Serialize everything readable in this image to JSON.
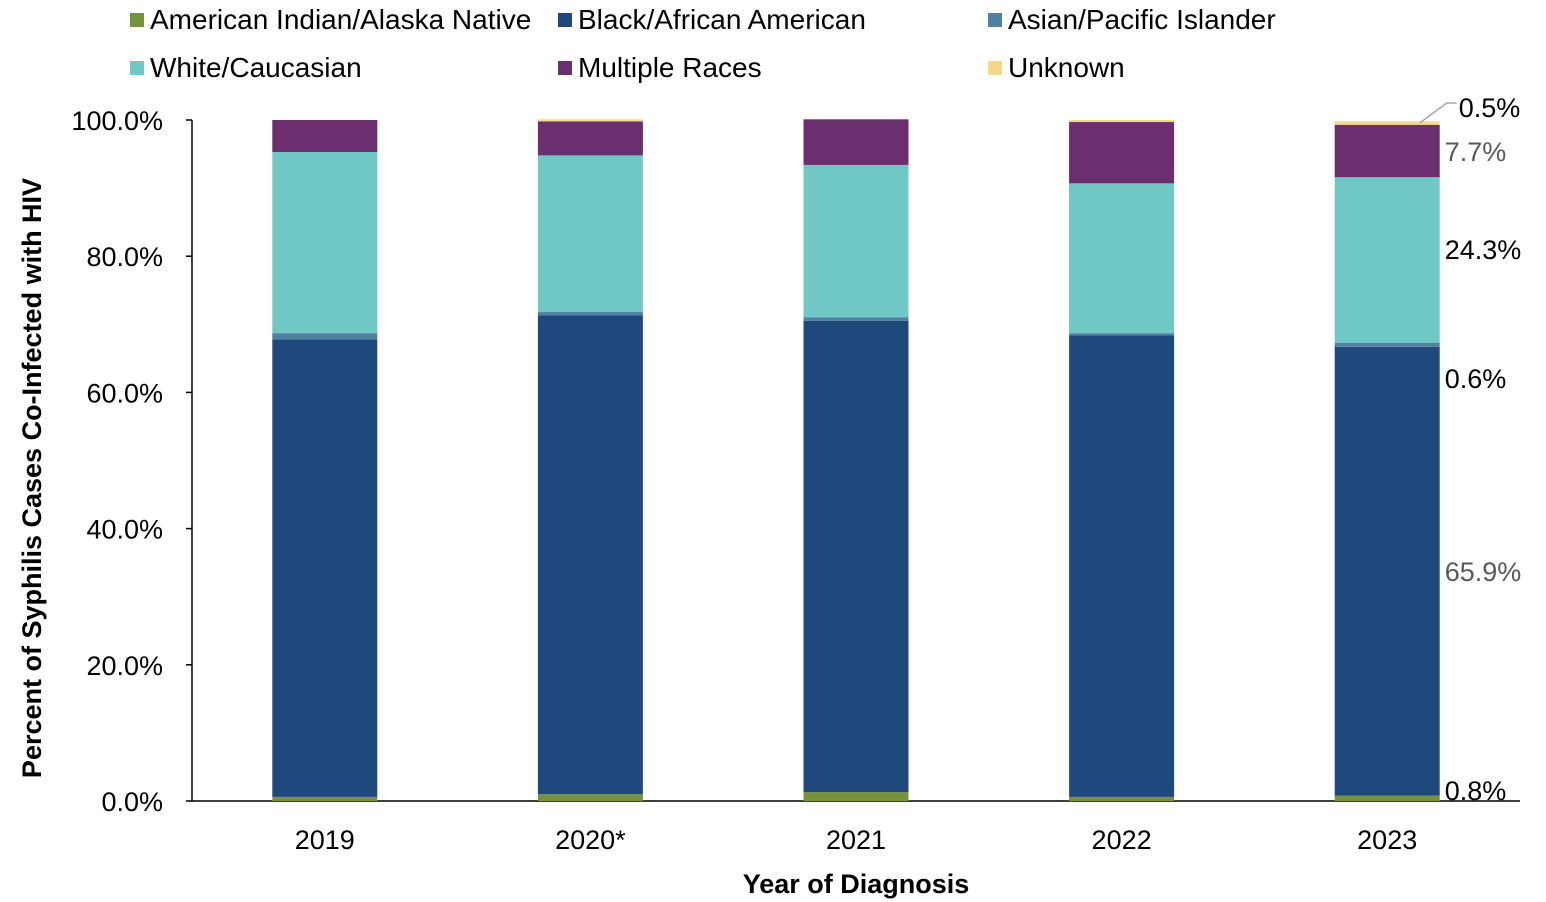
{
  "chart_data": {
    "type": "bar",
    "stacked": true,
    "categories": [
      "2019",
      "2020*",
      "2021",
      "2022",
      "2023"
    ],
    "series": [
      {
        "name": "American Indian/Alaska Native",
        "color": "#76923C",
        "values": [
          0.6,
          1.0,
          1.3,
          0.6,
          0.8
        ]
      },
      {
        "name": "Black/African American",
        "color": "#1F497D",
        "values": [
          67.2,
          70.3,
          69.2,
          67.8,
          65.9
        ]
      },
      {
        "name": "Asian/Pacific Islander",
        "color": "#4F81A0",
        "values": [
          0.9,
          0.5,
          0.5,
          0.3,
          0.6
        ]
      },
      {
        "name": "White/Caucasian",
        "color": "#70C8C5",
        "values": [
          26.6,
          23.0,
          22.4,
          22.0,
          24.3
        ]
      },
      {
        "name": "Multiple Races",
        "color": "#6B2E6E",
        "values": [
          4.7,
          5.0,
          6.7,
          9.0,
          7.7
        ]
      },
      {
        "name": "Unknown",
        "color": "#F6D68A",
        "values": [
          0.0,
          0.3,
          0.0,
          0.3,
          0.5
        ]
      }
    ],
    "data_labels": [
      {
        "text": "0.5%",
        "category": "2023",
        "series": "Unknown",
        "color": "#000000",
        "leader_line": true
      },
      {
        "text": "7.7%",
        "category": "2023",
        "series": "Multiple Races",
        "color": "#595959"
      },
      {
        "text": "24.3%",
        "category": "2023",
        "series": "White/Caucasian",
        "color": "#000000"
      },
      {
        "text": "0.6%",
        "category": "2023",
        "series": "Asian/Pacific Islander",
        "color": "#000000"
      },
      {
        "text": "65.9%",
        "category": "2023",
        "series": "Black/African American",
        "color": "#595959"
      },
      {
        "text": "0.8%",
        "category": "2023",
        "series": "American Indian/Alaska Native",
        "color": "#000000"
      }
    ],
    "ylabel": "Percent  of Syphilis Cases Co-Infected with HIV",
    "xlabel": "Year of Diagnosis",
    "ylim": [
      0,
      100
    ],
    "yticks": [
      "0.0%",
      "20.0%",
      "40.0%",
      "60.0%",
      "80.0%",
      "100.0%"
    ],
    "grid": false,
    "legend_position": "top"
  }
}
